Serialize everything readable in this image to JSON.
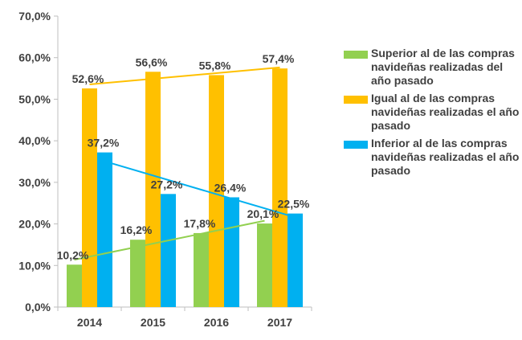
{
  "chart_data": {
    "type": "bar",
    "categories": [
      "2014",
      "2015",
      "2016",
      "2017"
    ],
    "ylim": [
      0,
      70
    ],
    "yticks": [
      "0,0%",
      "10,0%",
      "20,0%",
      "30,0%",
      "40,0%",
      "50,0%",
      "60,0%",
      "70,0%"
    ],
    "series": [
      {
        "name": "Superior al de las compras navideñas realizadas del año pasado",
        "color": "#92d050",
        "values": [
          10.2,
          16.2,
          17.8,
          20.1
        ],
        "labels": [
          "10,2%",
          "16,2%",
          "17,8%",
          "20,1%"
        ],
        "trendline": true
      },
      {
        "name": "Igual al de las compras navideñas realizadas el año pasado",
        "color": "#ffc000",
        "values": [
          52.6,
          56.6,
          55.8,
          57.4
        ],
        "labels": [
          "52,6%",
          "56,6%",
          "55,8%",
          "57,4%"
        ],
        "trendline": true
      },
      {
        "name": "Inferior al de las compras navideñas realizadas el año pasado",
        "color": "#00b0f0",
        "values": [
          37.2,
          27.2,
          26.4,
          22.5
        ],
        "labels": [
          "37,2%",
          "27,2%",
          "26,4%",
          "22,5%"
        ],
        "trendline": true
      }
    ],
    "grid": false,
    "legend": "right"
  }
}
